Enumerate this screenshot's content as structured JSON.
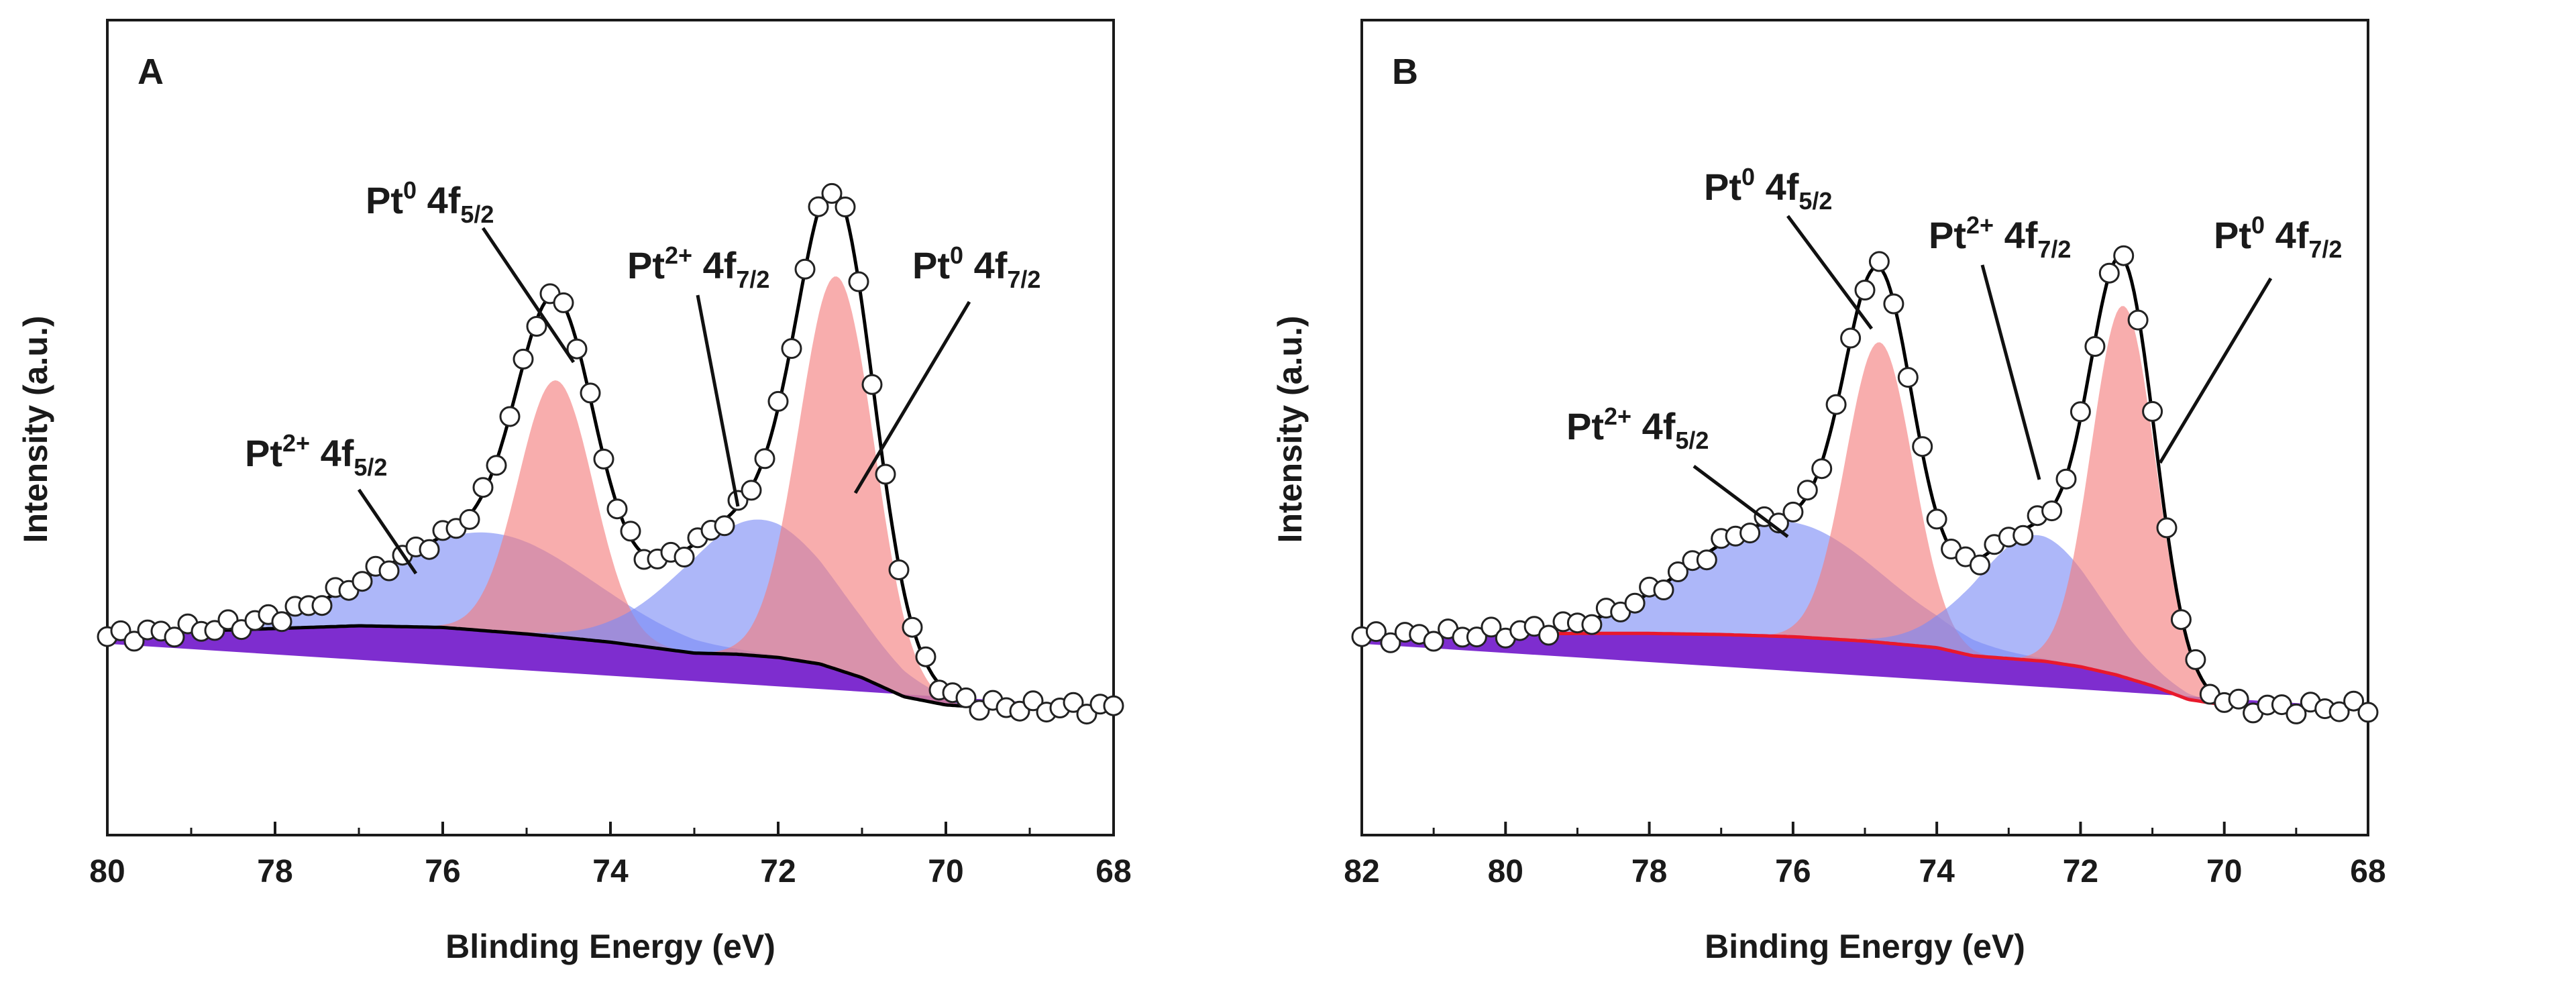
{
  "chart_data": [
    {
      "type": "line",
      "panel_label": "A",
      "xlabel": "Blinding Energy (eV)",
      "ylabel": "Intensity (a.u.)",
      "xlim": [
        80,
        68
      ],
      "ylim": [
        0,
        1.1
      ],
      "x_ticks": [
        "80",
        "78",
        "76",
        "74",
        "72",
        "70",
        "68"
      ],
      "x_tick_values": [
        80,
        78,
        76,
        74,
        72,
        70,
        68
      ],
      "background_color": "#7722cc",
      "envelope_color": "#000000",
      "background_line_color": "#000000",
      "background": {
        "x": [
          80,
          79,
          78,
          77,
          76,
          75,
          74,
          73.5,
          73,
          72.5,
          72,
          71.5,
          71,
          70.5,
          70,
          69.5,
          69,
          68.5,
          68
        ],
        "y": [
          0.13,
          0.14,
          0.145,
          0.15,
          0.147,
          0.135,
          0.12,
          0.11,
          0.1,
          0.098,
          0.092,
          0.08,
          0.055,
          0.02,
          0.005,
          0.0,
          0.0,
          0.0,
          0.0
        ]
      },
      "peaks": [
        {
          "name": "Pt2+ 4f5/2",
          "center": 75.45,
          "height": 0.18,
          "fwhm": 2.9,
          "color": "#7b8bf5"
        },
        {
          "name": "Pt0 4f5/2",
          "center": 74.65,
          "height": 0.47,
          "fwhm": 1.05,
          "color": "#f47b7b"
        },
        {
          "name": "Pt2+ 4f7/2",
          "center": 72.2,
          "height": 0.25,
          "fwhm": 2.2,
          "color": "#7b8bf5"
        },
        {
          "name": "Pt0 4f7/2",
          "center": 71.3,
          "height": 0.72,
          "fwhm": 1.05,
          "color": "#f47b7b"
        }
      ],
      "markers": {
        "x_start": 80,
        "x_end": 68,
        "step": 0.16
      },
      "annotations": [
        {
          "base": "Pt",
          "sup": "0",
          "rest": " 4f",
          "sub": "5/2"
        },
        {
          "base": "Pt",
          "sup": "2+",
          "rest": " 4f",
          "sub": "7/2"
        },
        {
          "base": "Pt",
          "sup": "0",
          "rest": " 4f",
          "sub": "7/2"
        },
        {
          "base": "Pt",
          "sup": "2+",
          "rest": " 4f",
          "sub": "5/2"
        }
      ]
    },
    {
      "type": "line",
      "panel_label": "B",
      "xlabel": "Binding Energy (eV)",
      "ylabel": "Intensity (a.u.)",
      "xlim": [
        82,
        68
      ],
      "ylim": [
        0,
        1.1
      ],
      "x_ticks": [
        "82",
        "80",
        "78",
        "76",
        "74",
        "72",
        "70",
        "68"
      ],
      "x_tick_values": [
        82,
        80,
        78,
        76,
        74,
        72,
        70,
        68
      ],
      "background_color": "#7722cc",
      "envelope_color": "#000000",
      "background_line_color": "#e8192c",
      "background": {
        "x": [
          82,
          81,
          80,
          79,
          78,
          77,
          76,
          75,
          74,
          73.5,
          73,
          72.5,
          72,
          71.5,
          71,
          70.5,
          70,
          69.5,
          69,
          68.5,
          68
        ],
        "y": [
          0.13,
          0.132,
          0.135,
          0.136,
          0.136,
          0.134,
          0.13,
          0.122,
          0.11,
          0.095,
          0.09,
          0.085,
          0.075,
          0.06,
          0.04,
          0.015,
          0.005,
          0.0,
          0.0,
          0.0,
          0.0
        ]
      },
      "peaks": [
        {
          "name": "Pt2+ 4f5/2",
          "center": 76.1,
          "height": 0.21,
          "fwhm": 3.1,
          "color": "#7b8bf5"
        },
        {
          "name": "Pt0 4f5/2",
          "center": 74.8,
          "height": 0.55,
          "fwhm": 1.1,
          "color": "#f47b7b"
        },
        {
          "name": "Pt2+ 4f7/2",
          "center": 72.6,
          "height": 0.23,
          "fwhm": 2.0,
          "color": "#7b8bf5"
        },
        {
          "name": "Pt0 4f7/2",
          "center": 71.4,
          "height": 0.68,
          "fwhm": 1.05,
          "color": "#f47b7b"
        }
      ],
      "markers": {
        "x_start": 82,
        "x_end": 68,
        "step": 0.2
      },
      "annotations": [
        {
          "base": "Pt",
          "sup": "0",
          "rest": " 4f",
          "sub": "5/2"
        },
        {
          "base": "Pt",
          "sup": "2+",
          "rest": " 4f",
          "sub": "7/2"
        },
        {
          "base": "Pt",
          "sup": "0",
          "rest": " 4f",
          "sub": "7/2"
        },
        {
          "base": "Pt",
          "sup": "2+",
          "rest": " 4f",
          "sub": "5/2"
        }
      ]
    }
  ]
}
